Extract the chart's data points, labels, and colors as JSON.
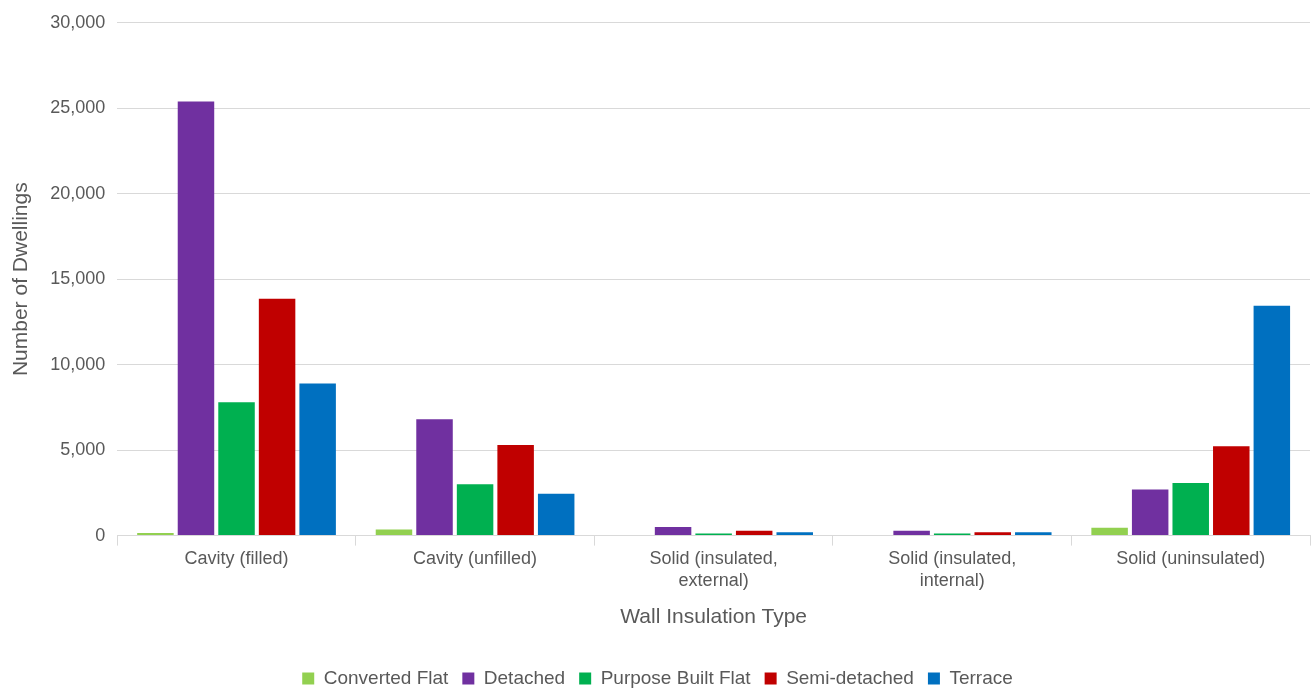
{
  "chart_data": {
    "type": "bar",
    "xlabel": "Wall Insulation Type",
    "ylabel": "Number of Dwellings",
    "categories": [
      "Cavity (filled)",
      "Cavity (unfilled)",
      "Solid (insulated, external)",
      "Solid (insulated, internal)",
      "Solid (uninsulated)"
    ],
    "series": [
      {
        "name": "Converted Flat",
        "color": "#92d050",
        "values": [
          150,
          360,
          0,
          0,
          460
        ]
      },
      {
        "name": "Detached",
        "color": "#7030a0",
        "values": [
          25400,
          6800,
          510,
          280,
          2700
        ]
      },
      {
        "name": "Purpose Built Flat",
        "color": "#00b050",
        "values": [
          7800,
          3000,
          120,
          120,
          3080
        ]
      },
      {
        "name": "Semi-detached",
        "color": "#c00000",
        "values": [
          13850,
          5300,
          280,
          200,
          5230
        ]
      },
      {
        "name": "Terrace",
        "color": "#0070c0",
        "values": [
          8900,
          2450,
          200,
          200,
          13440
        ]
      }
    ],
    "ylim": [
      0,
      30000
    ],
    "yticks": [
      0,
      {
        "value": 5000,
        "label": "5,000"
      },
      {
        "value": 10000,
        "label": "10,000"
      },
      {
        "value": 15000,
        "label": "15,000"
      },
      {
        "value": 20000,
        "label": "20,000"
      },
      {
        "value": 25000,
        "label": "25,000"
      },
      {
        "value": 30000,
        "label": "30,000"
      }
    ],
    "grid": "y",
    "legend": "bottom"
  }
}
